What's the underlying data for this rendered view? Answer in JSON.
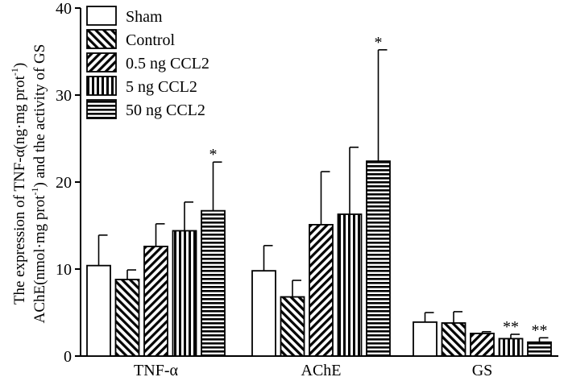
{
  "chart_data": {
    "type": "bar",
    "title": "",
    "ylabel_line1": "The expression of TNF-α(ng·mg prot",
    "ylabel_line1_sup": "-1",
    "ylabel_line1_end": ")",
    "ylabel_line2": "AChE(nmol·mg prot",
    "ylabel_line2_sup": "-1",
    "ylabel_line2_end": ") and the activity of GS",
    "xlabel": "",
    "ylim": [
      0,
      40
    ],
    "yticks": [
      "0",
      "10",
      "20",
      "30",
      "40"
    ],
    "categories": [
      "TNF-α",
      "AChE",
      "GS"
    ],
    "legend_position": "top-left",
    "series": [
      {
        "name": "Sham",
        "pattern": "none",
        "values": [
          10.4,
          9.8,
          3.9
        ],
        "errors": [
          3.5,
          2.9,
          1.1
        ],
        "marks": [
          "",
          "",
          ""
        ]
      },
      {
        "name": "Control",
        "pattern": "back-diagonal",
        "values": [
          8.8,
          6.8,
          3.8
        ],
        "errors": [
          1.1,
          1.9,
          1.3
        ],
        "marks": [
          "",
          "",
          ""
        ]
      },
      {
        "name": "0.5 ng CCL2",
        "pattern": "diagonal",
        "values": [
          12.6,
          15.1,
          2.6
        ],
        "errors": [
          2.6,
          6.1,
          0.2
        ],
        "marks": [
          "",
          "",
          ""
        ]
      },
      {
        "name": "5 ng CCL2",
        "pattern": "vertical",
        "values": [
          14.4,
          16.3,
          2.0
        ],
        "errors": [
          3.3,
          7.7,
          0.5
        ],
        "marks": [
          "",
          "",
          "**"
        ]
      },
      {
        "name": "50 ng CCL2",
        "pattern": "horizontal",
        "values": [
          16.7,
          22.4,
          1.6
        ],
        "errors": [
          5.6,
          12.8,
          0.5
        ],
        "marks": [
          "*",
          "*",
          "**"
        ]
      }
    ]
  }
}
